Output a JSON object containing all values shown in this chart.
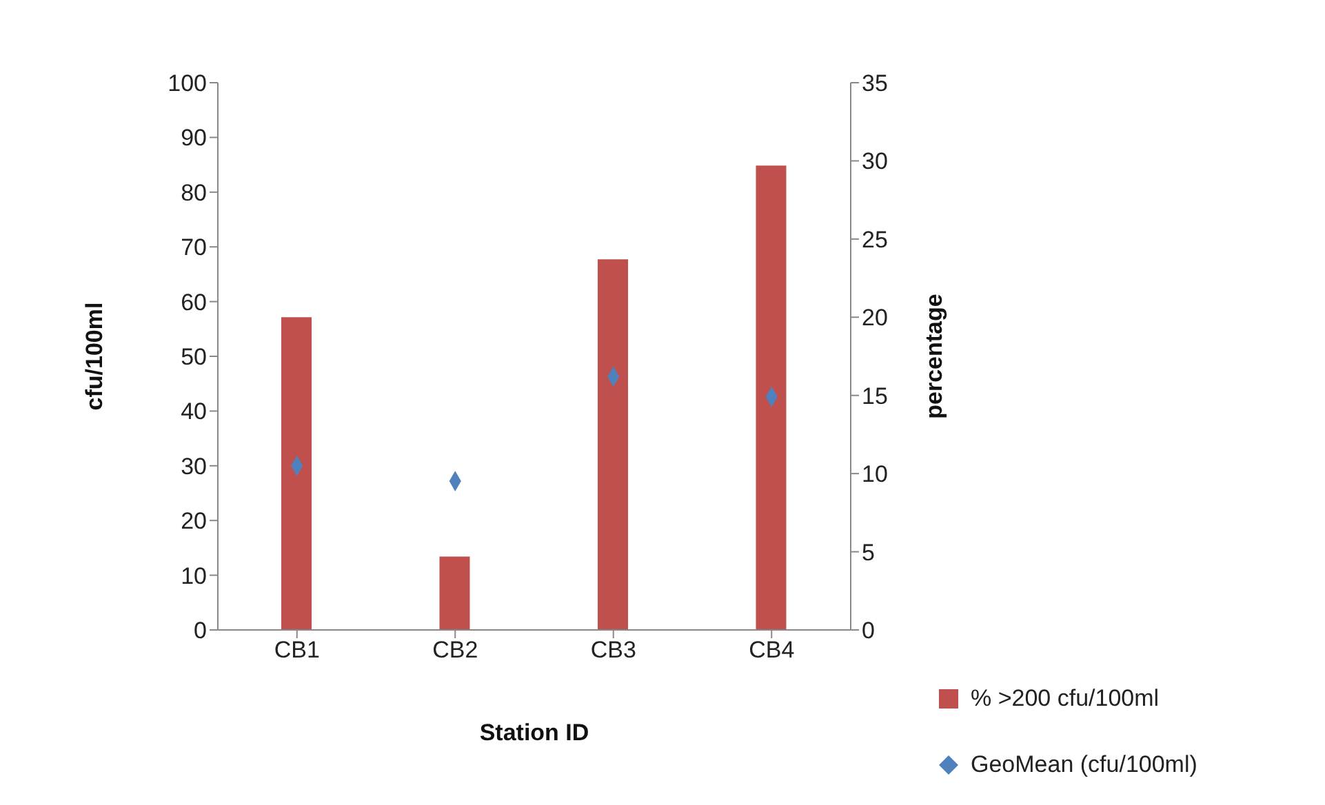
{
  "chart_data": {
    "type": "bar",
    "xlabel": "Station ID",
    "ylabel": "cfu/100ml",
    "y2label": "percentage",
    "categories": [
      "CB1",
      "CB2",
      "CB3",
      "CB4"
    ],
    "series": [
      {
        "name": "% >200 cfu/100ml",
        "axis": "y2",
        "color": "#c0504d",
        "values": [
          20,
          4.7,
          23.7,
          29.7
        ]
      },
      {
        "name": "GeoMean (cfu/100ml)",
        "type": "scatter",
        "marker": "diamond",
        "color": "#4f81bd",
        "values": [
          30,
          27.2,
          46.3,
          42.6
        ]
      }
    ],
    "ylim": [
      0,
      100
    ],
    "yticks": [
      0,
      10,
      20,
      30,
      40,
      50,
      60,
      70,
      80,
      90,
      100
    ],
    "y2lim": [
      0,
      35
    ],
    "y2ticks": [
      0,
      5,
      10,
      15,
      20,
      25,
      30,
      35
    ],
    "legend": "right"
  }
}
